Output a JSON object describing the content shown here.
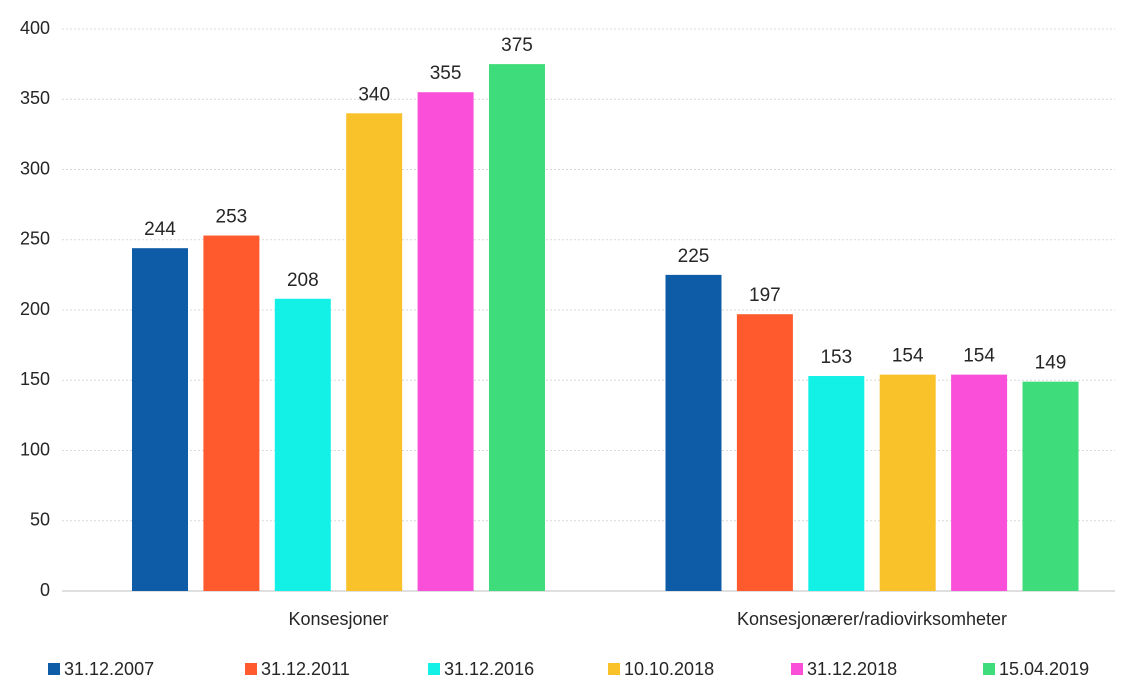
{
  "chart_data": {
    "type": "bar",
    "categories": [
      "Konsesjoner",
      "Konsesjonærer/radiovirksomheter"
    ],
    "series": [
      {
        "name": "31.12.2007",
        "color": "#0e5ca7",
        "values": [
          244,
          225
        ]
      },
      {
        "name": "31.12.2011",
        "color": "#ff5a2d",
        "values": [
          253,
          197
        ]
      },
      {
        "name": "31.12.2016",
        "color": "#13f1e6",
        "values": [
          208,
          153
        ]
      },
      {
        "name": "10.10.2018",
        "color": "#f9c22b",
        "values": [
          340,
          154
        ]
      },
      {
        "name": "31.12.2018",
        "color": "#f94fd9",
        "values": [
          355,
          154
        ]
      },
      {
        "name": "15.04.2019",
        "color": "#3edc7a",
        "values": [
          375,
          149
        ]
      }
    ],
    "ylim": [
      0,
      400
    ],
    "yticks": [
      0,
      50,
      100,
      150,
      200,
      250,
      300,
      350,
      400
    ],
    "grid": true,
    "legend": "bottom"
  }
}
